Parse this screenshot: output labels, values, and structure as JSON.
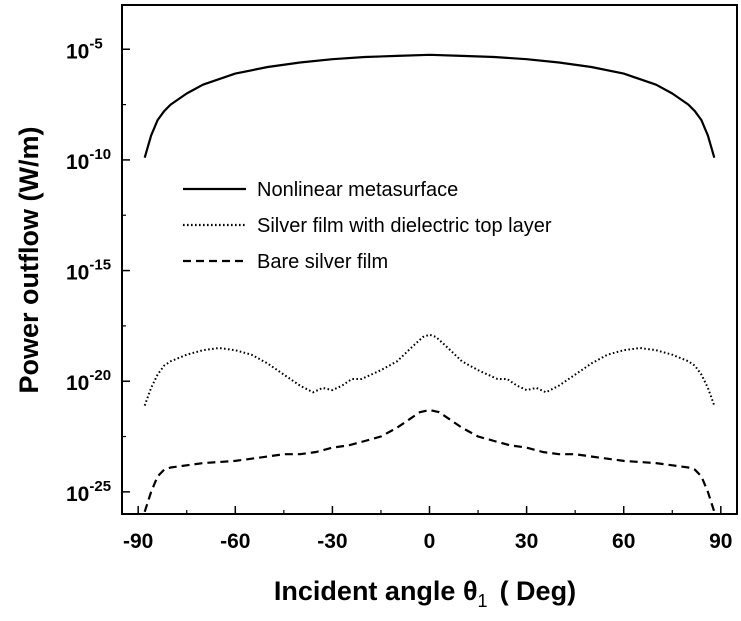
{
  "chart_data": {
    "type": "line",
    "xlabel": "Incident angle θ1 ( Deg)",
    "xlabel_parts": {
      "main": "Incident angle θ",
      "subscript": "1",
      "unit": "( Deg)"
    },
    "ylabel": "Power outflow (W/m)",
    "y_scale": "log",
    "xlim": [
      -95,
      95
    ],
    "ylim_exponent": [
      -26,
      -3
    ],
    "x_ticks": [
      -90,
      -60,
      -30,
      0,
      30,
      60,
      90
    ],
    "x_tick_labels": [
      "-90",
      "-60",
      "-30",
      "0",
      "30",
      "60",
      "90"
    ],
    "y_ticks_exponent": [
      -5,
      -10,
      -15,
      -20,
      -25
    ],
    "y_tick_base": "10",
    "y_tick_exponents": [
      "-5",
      "-10",
      "-15",
      "-20",
      "-25"
    ],
    "legend_placement": "upper-center",
    "series": [
      {
        "name": "Nonlinear metasurface",
        "style": "solid",
        "x": [
          -88,
          -86,
          -84,
          -82,
          -80,
          -75,
          -70,
          -60,
          -50,
          -40,
          -30,
          -20,
          -10,
          0,
          10,
          20,
          30,
          40,
          50,
          60,
          70,
          75,
          80,
          82,
          84,
          86,
          88
        ],
        "log10_y": [
          -9.9,
          -8.9,
          -8.2,
          -7.8,
          -7.5,
          -7.0,
          -6.6,
          -6.1,
          -5.8,
          -5.6,
          -5.45,
          -5.35,
          -5.3,
          -5.25,
          -5.3,
          -5.35,
          -5.45,
          -5.6,
          -5.8,
          -6.1,
          -6.6,
          -7.0,
          -7.5,
          -7.8,
          -8.2,
          -8.9,
          -9.9
        ]
      },
      {
        "name": "Silver film with dielectric top layer",
        "style": "dotted",
        "x": [
          -88,
          -86,
          -84,
          -82,
          -80,
          -75,
          -70,
          -65,
          -60,
          -55,
          -50,
          -45,
          -40,
          -36,
          -33,
          -30,
          -27,
          -24,
          -21,
          -18,
          -15,
          -10,
          -5,
          -2,
          0,
          2,
          5,
          10,
          15,
          18,
          21,
          24,
          27,
          30,
          33,
          36,
          40,
          45,
          50,
          55,
          60,
          65,
          70,
          75,
          80,
          82,
          84,
          86,
          88
        ],
        "log10_y": [
          -21.1,
          -20.3,
          -19.7,
          -19.3,
          -19.1,
          -18.8,
          -18.6,
          -18.5,
          -18.6,
          -18.8,
          -19.2,
          -19.7,
          -20.2,
          -20.5,
          -20.3,
          -20.4,
          -20.2,
          -19.9,
          -19.9,
          -19.7,
          -19.5,
          -19.1,
          -18.4,
          -18.0,
          -17.9,
          -18.0,
          -18.4,
          -19.1,
          -19.5,
          -19.7,
          -19.9,
          -19.9,
          -20.2,
          -20.4,
          -20.3,
          -20.5,
          -20.2,
          -19.7,
          -19.2,
          -18.8,
          -18.6,
          -18.5,
          -18.6,
          -18.8,
          -19.1,
          -19.3,
          -19.7,
          -20.3,
          -21.1
        ]
      },
      {
        "name": "Bare silver film",
        "style": "dashed",
        "x": [
          -88,
          -86,
          -84,
          -82,
          -80,
          -75,
          -70,
          -60,
          -50,
          -45,
          -40,
          -35,
          -30,
          -25,
          -20,
          -15,
          -10,
          -6,
          -3,
          0,
          3,
          6,
          10,
          15,
          20,
          25,
          30,
          35,
          40,
          45,
          50,
          60,
          70,
          75,
          80,
          82,
          84,
          86,
          88
        ],
        "log10_y": [
          -25.9,
          -25.0,
          -24.3,
          -24.0,
          -23.9,
          -23.8,
          -23.7,
          -23.6,
          -23.4,
          -23.3,
          -23.3,
          -23.2,
          -23.0,
          -22.9,
          -22.7,
          -22.5,
          -22.1,
          -21.7,
          -21.4,
          -21.3,
          -21.4,
          -21.7,
          -22.1,
          -22.5,
          -22.7,
          -22.9,
          -23.0,
          -23.2,
          -23.3,
          -23.3,
          -23.4,
          -23.6,
          -23.7,
          -23.8,
          -23.9,
          -24.0,
          -24.3,
          -25.0,
          -25.9
        ]
      }
    ]
  }
}
